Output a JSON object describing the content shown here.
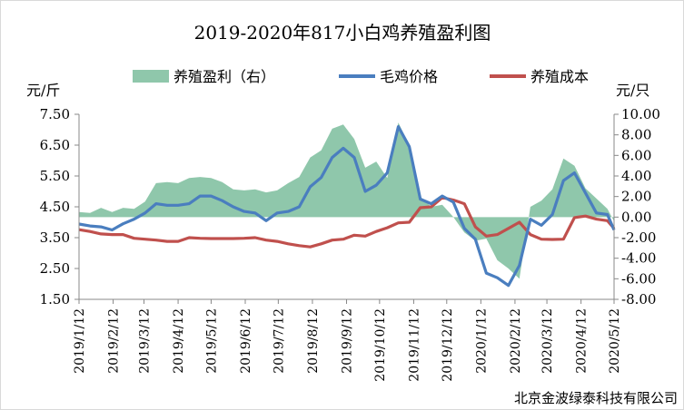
{
  "chart_data": {
    "type": "line",
    "title": "2019-2020年817小白鸡养殖盈利图",
    "left_axis": {
      "unit": "元/斤",
      "ylim": [
        1.5,
        7.5
      ],
      "ticks": [
        "7.50",
        "6.50",
        "5.50",
        "4.50",
        "3.50",
        "2.50",
        "1.50"
      ]
    },
    "right_axis": {
      "unit": "元/只",
      "ylim": [
        -8,
        10
      ],
      "ticks": [
        "10.00",
        "8.00",
        "6.00",
        "4.00",
        "2.00",
        "0.00",
        "-2.00",
        "-4.00",
        "-6.00",
        "-8.00"
      ]
    },
    "x_ticks": [
      "2019/1/12",
      "2019/2/12",
      "2019/3/12",
      "2019/4/12",
      "2019/5/12",
      "2019/6/12",
      "2019/7/12",
      "2019/8/12",
      "2019/9/12",
      "2019/10/12",
      "2019/11/12",
      "2019/12/12",
      "2020/1/12",
      "2020/2/12",
      "2020/3/12",
      "2020/4/12",
      "2020/5/12"
    ],
    "x": [
      "2019-01-12",
      "2019-01-22",
      "2019-02-01",
      "2019-02-11",
      "2019-02-21",
      "2019-03-03",
      "2019-03-13",
      "2019-03-23",
      "2019-04-02",
      "2019-04-12",
      "2019-04-22",
      "2019-05-02",
      "2019-05-12",
      "2019-05-22",
      "2019-06-01",
      "2019-06-11",
      "2019-06-21",
      "2019-07-01",
      "2019-07-11",
      "2019-07-21",
      "2019-07-31",
      "2019-08-10",
      "2019-08-20",
      "2019-08-30",
      "2019-09-09",
      "2019-09-19",
      "2019-09-29",
      "2019-10-09",
      "2019-10-19",
      "2019-10-29",
      "2019-11-08",
      "2019-11-18",
      "2019-11-28",
      "2019-12-08",
      "2019-12-18",
      "2019-12-28",
      "2020-01-07",
      "2020-01-17",
      "2020-01-27",
      "2020-02-06",
      "2020-02-16",
      "2020-02-26",
      "2020-03-07",
      "2020-03-17",
      "2020-03-27",
      "2020-04-06",
      "2020-04-16",
      "2020-04-26",
      "2020-05-06",
      "2020-05-12"
    ],
    "series": [
      {
        "name": "养殖盈利（右）",
        "type": "area",
        "axis": "right",
        "color": "#8fc7ab",
        "values": [
          0.5,
          0.4,
          0.9,
          0.5,
          0.9,
          0.8,
          1.5,
          3.3,
          3.4,
          3.3,
          3.8,
          3.9,
          3.8,
          3.4,
          2.7,
          2.6,
          2.7,
          2.4,
          2.6,
          3.3,
          3.9,
          5.8,
          6.5,
          8.6,
          9.0,
          7.6,
          4.8,
          5.4,
          3.8,
          9.2,
          7.0,
          2.0,
          1.0,
          1.2,
          0.0,
          -1.5,
          -2.3,
          -2.1,
          -4.2,
          -5.0,
          -6.0,
          1.0,
          1.6,
          2.7,
          5.7,
          5.0,
          2.8,
          1.8,
          0.8,
          -0.4
        ]
      },
      {
        "name": "毛鸡价格",
        "type": "line",
        "axis": "left",
        "color": "#4a7ebf",
        "values": [
          3.94,
          3.88,
          3.85,
          3.75,
          3.95,
          4.1,
          4.3,
          4.6,
          4.55,
          4.55,
          4.6,
          4.85,
          4.85,
          4.7,
          4.5,
          4.35,
          4.3,
          4.05,
          4.3,
          4.35,
          4.5,
          5.15,
          5.45,
          6.1,
          6.4,
          6.1,
          5.0,
          5.2,
          5.6,
          7.1,
          6.45,
          4.75,
          4.6,
          4.85,
          4.65,
          3.8,
          3.45,
          2.35,
          2.2,
          1.95,
          2.6,
          4.1,
          3.9,
          4.25,
          5.35,
          5.6,
          4.95,
          4.3,
          4.25,
          3.75
        ]
      },
      {
        "name": "养殖成本",
        "type": "line",
        "axis": "left",
        "color": "#c0504d",
        "values": [
          3.76,
          3.7,
          3.62,
          3.6,
          3.6,
          3.48,
          3.45,
          3.42,
          3.38,
          3.38,
          3.5,
          3.48,
          3.47,
          3.47,
          3.47,
          3.48,
          3.5,
          3.42,
          3.38,
          3.3,
          3.24,
          3.2,
          3.3,
          3.42,
          3.45,
          3.58,
          3.55,
          3.7,
          3.82,
          3.98,
          4.0,
          4.47,
          4.5,
          4.8,
          4.72,
          4.6,
          3.85,
          3.55,
          3.6,
          3.8,
          4.0,
          3.6,
          3.45,
          3.44,
          3.45,
          4.15,
          4.2,
          4.1,
          4.05,
          3.8
        ]
      }
    ],
    "legend_position": "top",
    "grid": false
  },
  "footer": "北京金波绿泰科技有限公司"
}
